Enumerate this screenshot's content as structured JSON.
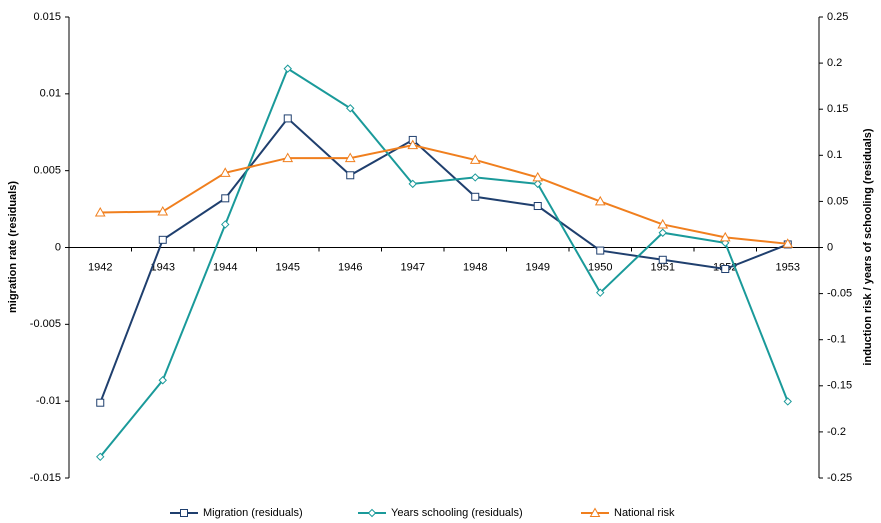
{
  "chart_data": {
    "type": "line",
    "categories": [
      "1942",
      "1943",
      "1944",
      "1945",
      "1946",
      "1947",
      "1948",
      "1949",
      "1950",
      "1951",
      "1952",
      "1953"
    ],
    "y_label": "migration rate (residuals)",
    "y2_label": "induction risk / years of schooling (residuals)",
    "ylim": [
      -0.015,
      0.015
    ],
    "yticks": [
      -0.015,
      -0.01,
      -0.005,
      0,
      0.005,
      0.01,
      0.015
    ],
    "y2lim": [
      -0.25,
      0.25
    ],
    "y2ticks": [
      -0.25,
      -0.2,
      -0.15,
      -0.1,
      -0.05,
      0,
      0.05,
      0.1,
      0.15,
      0.2,
      0.25
    ],
    "legend": "bottom",
    "series": [
      {
        "name": "Migration (residuals)",
        "color": "#1f3f6e",
        "marker": "square",
        "axis": "y",
        "values": [
          -0.0101,
          0.0005,
          0.0032,
          0.0084,
          0.0047,
          0.007,
          0.0033,
          0.0027,
          -0.0002,
          -0.0008,
          -0.0014,
          0.0002
        ]
      },
      {
        "name": "Years schooling (residuals)",
        "color": "#1a9a9a",
        "marker": "diamond",
        "axis": "y2",
        "values": [
          -0.227,
          -0.144,
          0.025,
          0.194,
          0.151,
          0.069,
          0.076,
          0.069,
          -0.049,
          0.016,
          0.005,
          -0.167
        ]
      },
      {
        "name": "National risk",
        "color": "#f07f1e",
        "marker": "triangle",
        "axis": "y2",
        "values": [
          0.038,
          0.039,
          0.081,
          0.097,
          0.097,
          0.111,
          0.095,
          0.076,
          0.05,
          0.025,
          0.011,
          0.004
        ]
      }
    ]
  }
}
